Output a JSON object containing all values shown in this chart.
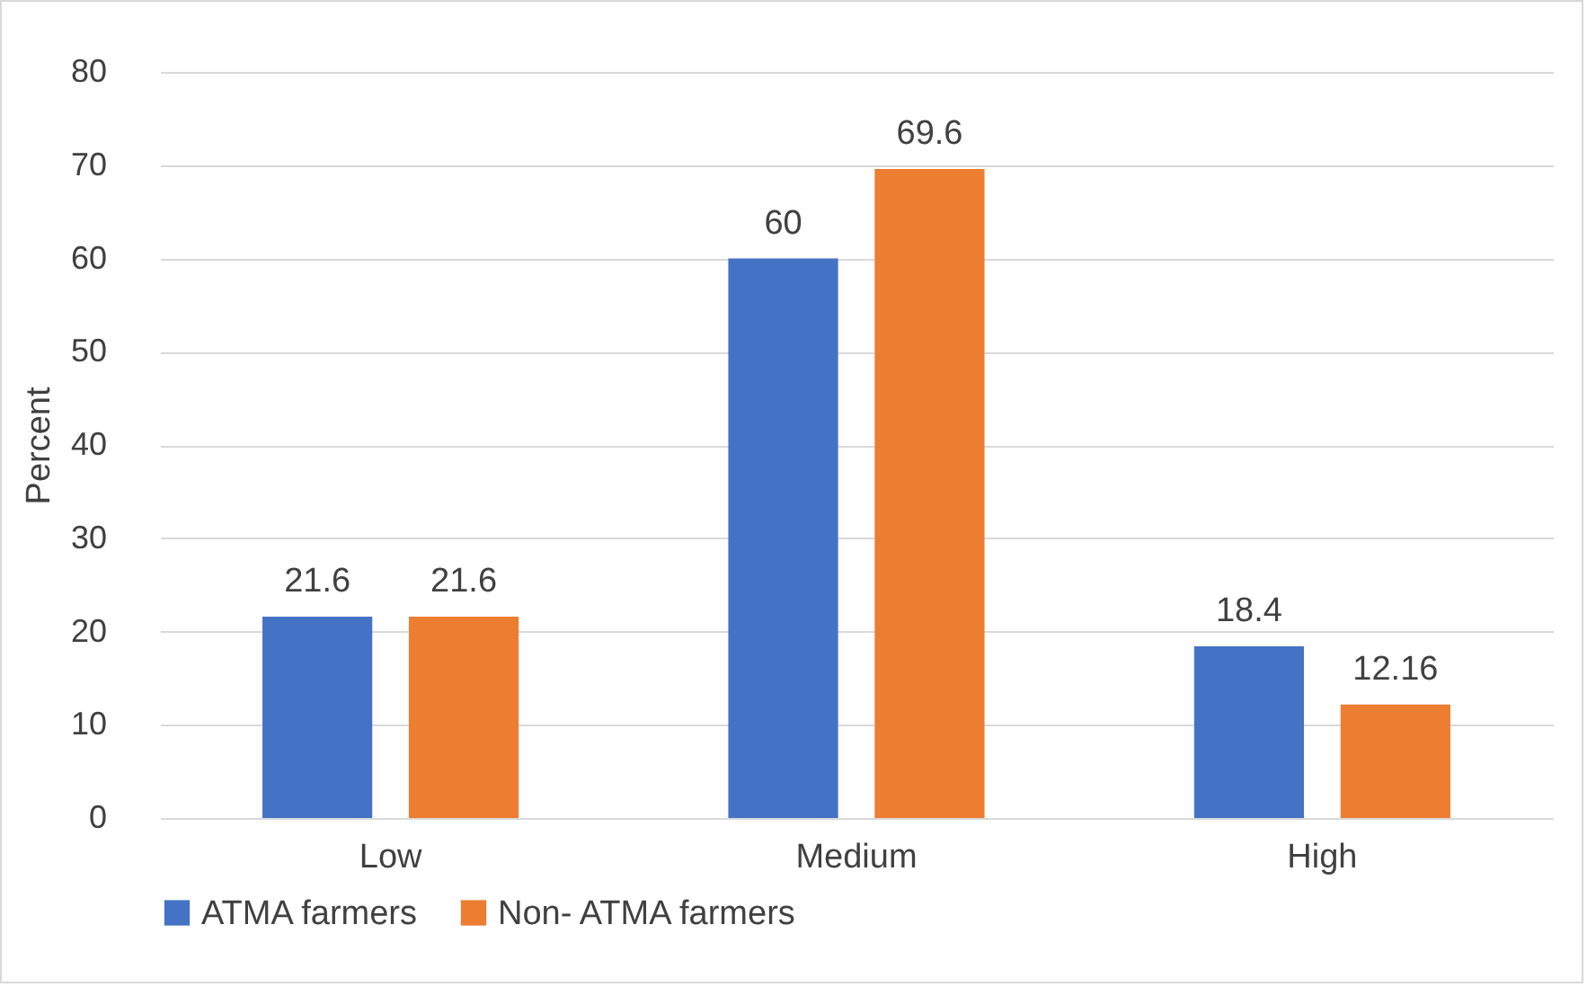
{
  "chart_data": {
    "type": "bar",
    "ylabel": "Percent",
    "categories": [
      "Low",
      "Medium",
      "High"
    ],
    "series": [
      {
        "name": "ATMA farmers",
        "color": "#4472c4",
        "values": [
          21.6,
          60,
          18.4
        ]
      },
      {
        "name": "Non- ATMA farmers",
        "color": "#ed7d31",
        "values": [
          21.6,
          69.6,
          12.16
        ]
      }
    ],
    "ylim": [
      0,
      80
    ],
    "yticks": [
      0,
      10,
      20,
      30,
      40,
      50,
      60,
      70,
      80
    ],
    "grid": "y",
    "legend": "bottom",
    "data_labels": true
  }
}
